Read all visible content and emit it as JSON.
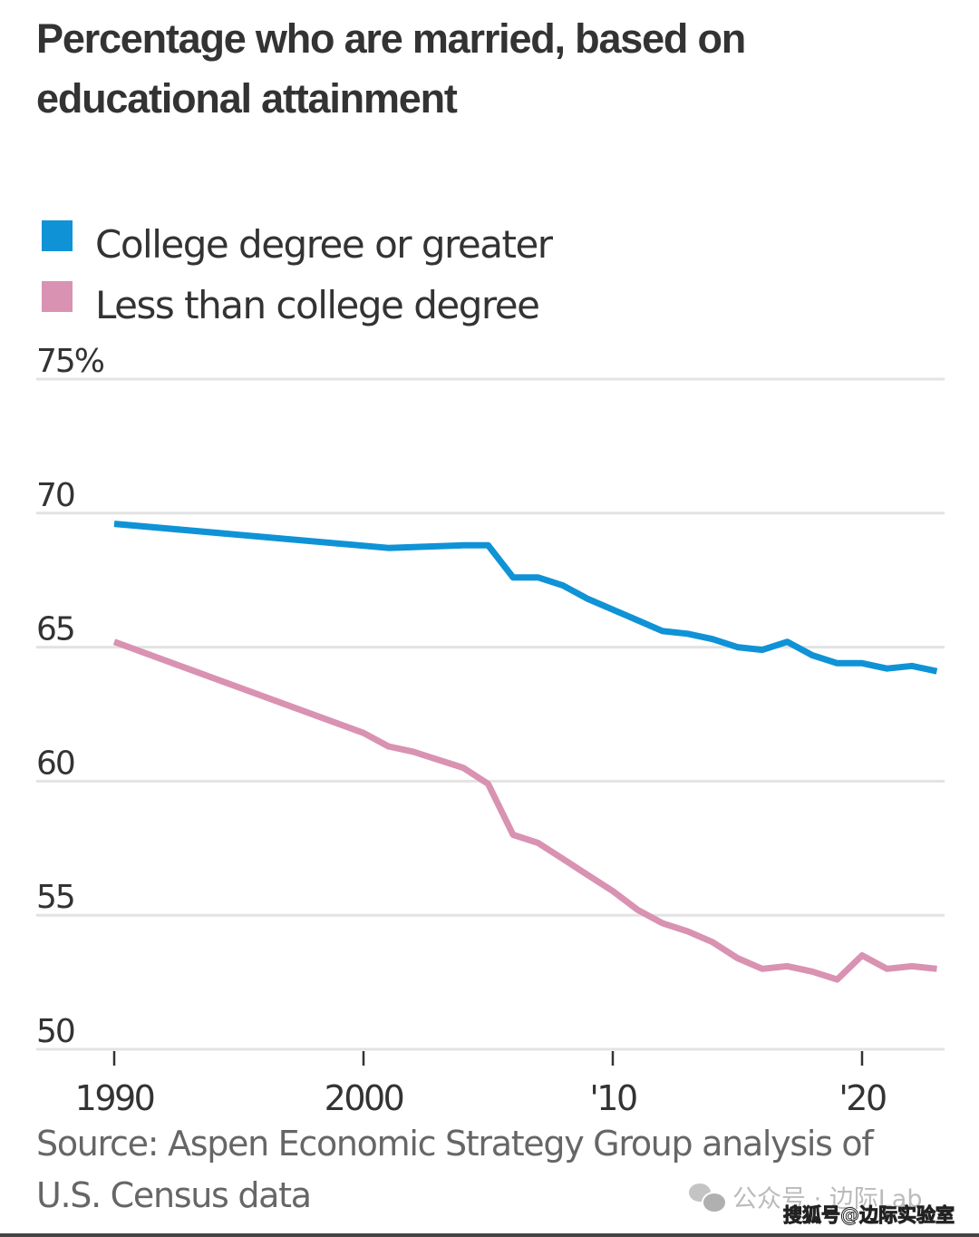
{
  "chart_data": {
    "type": "line",
    "title": "Percentage who are married, based on educational attainment",
    "xlabel": "",
    "ylabel": "",
    "ylim": [
      50,
      75
    ],
    "xlim": [
      1989,
      2024.5
    ],
    "y_ticks": [
      {
        "value": 75,
        "label": "75%"
      },
      {
        "value": 70,
        "label": "70"
      },
      {
        "value": 65,
        "label": "65"
      },
      {
        "value": 60,
        "label": "60"
      },
      {
        "value": 55,
        "label": "55"
      },
      {
        "value": 50,
        "label": "50"
      }
    ],
    "x_ticks": [
      {
        "value": 1990,
        "label": "1990"
      },
      {
        "value": 2000,
        "label": "2000"
      },
      {
        "value": 2010,
        "label": "'10"
      },
      {
        "value": 2020,
        "label": "'20"
      }
    ],
    "grid": true,
    "legend_position": "top-left",
    "series": [
      {
        "name": "College degree or greater",
        "color": "#0f93d6",
        "x": [
          1990,
          2001,
          2004,
          2005,
          2006,
          2007,
          2008,
          2009,
          2010,
          2011,
          2012,
          2013,
          2014,
          2015,
          2016,
          2017,
          2018,
          2019,
          2020,
          2021,
          2022,
          2023
        ],
        "values": [
          69.6,
          68.7,
          68.8,
          68.8,
          67.6,
          67.6,
          67.3,
          66.8,
          66.4,
          66.0,
          65.6,
          65.5,
          65.3,
          65.0,
          64.9,
          65.2,
          64.7,
          64.4,
          64.4,
          64.2,
          64.3,
          64.1
        ]
      },
      {
        "name": "Less than college degree",
        "color": "#d992b1",
        "x": [
          1990,
          2000,
          2001,
          2002,
          2003,
          2004,
          2005,
          2006,
          2007,
          2008,
          2009,
          2010,
          2011,
          2012,
          2013,
          2014,
          2015,
          2016,
          2017,
          2018,
          2019,
          2020,
          2021,
          2022,
          2023
        ],
        "values": [
          65.2,
          61.8,
          61.3,
          61.1,
          60.8,
          60.5,
          59.9,
          58.0,
          57.7,
          57.1,
          56.5,
          55.9,
          55.2,
          54.7,
          54.4,
          54.0,
          53.4,
          53.0,
          53.1,
          52.9,
          52.6,
          53.5,
          53.0,
          53.1,
          53.0
        ]
      }
    ],
    "source": "Source: Aspen Economic Strategy Group analysis of U.S. Census data"
  },
  "header": {
    "title": "Percentage who are married, based on educational attainment"
  },
  "legend": {
    "items": [
      {
        "label": "College degree or greater",
        "color": "#0f93d6"
      },
      {
        "label": "Less than college degree",
        "color": "#d992b1"
      }
    ]
  },
  "footer": {
    "source": "Source: Aspen Economic Strategy Group analysis of U.S. Census data",
    "watermark_primary": "公众号 · 边际Lab",
    "watermark_secondary": "搜狐号@边际实验室"
  },
  "colors": {
    "gridline": "#e3e3e3",
    "axis_text": "#333333",
    "tick": "#333333"
  }
}
